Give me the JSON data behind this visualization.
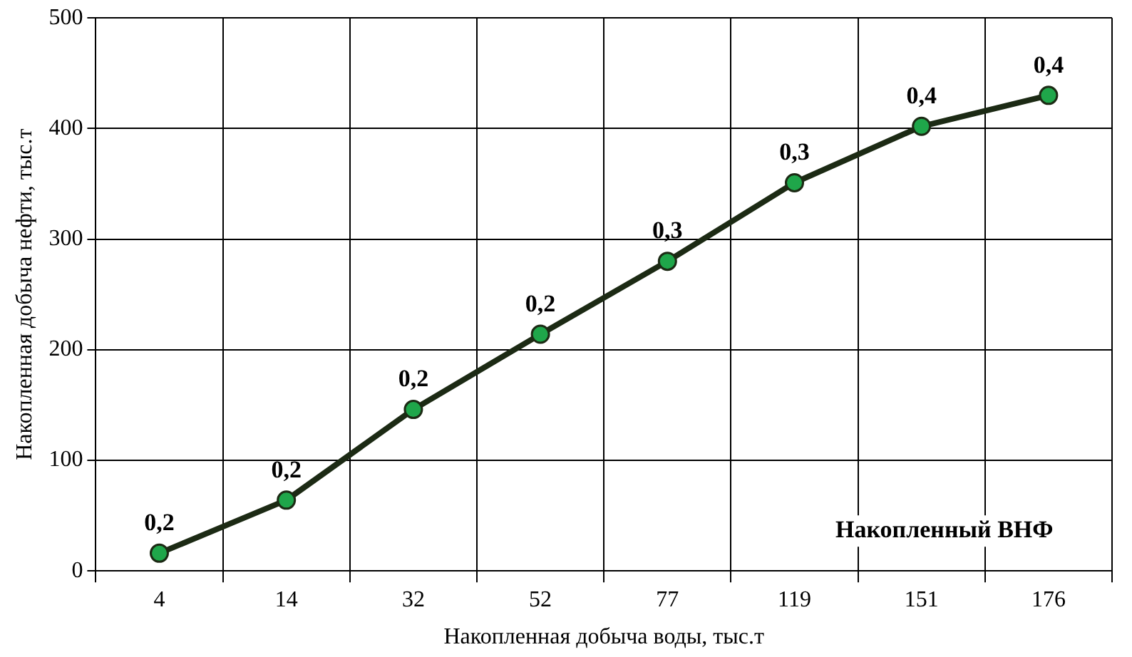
{
  "chart_data": {
    "type": "line",
    "xlabel": "Накопленная добыча воды, тыс.т",
    "ylabel": "Накопленная добыча нефти, тыс.т",
    "categories": [
      "4",
      "14",
      "32",
      "52",
      "77",
      "119",
      "151",
      "176"
    ],
    "series": [
      {
        "color": "#1c2a14",
        "values": [
          16,
          64,
          146,
          214,
          280,
          351,
          402,
          430
        ]
      }
    ],
    "ylim": [
      0,
      500
    ],
    "yticks": [
      0,
      100,
      200,
      300,
      400,
      500
    ],
    "grid": true,
    "legend": false,
    "marker": "circle",
    "line_style": "solid",
    "annotations": [
      {
        "text": "0,2",
        "x": "4",
        "y": 16
      },
      {
        "text": "0,2",
        "x": "14",
        "y": 64
      },
      {
        "text": "0,2",
        "x": "32",
        "y": 146
      },
      {
        "text": "0,2",
        "x": "52",
        "y": 214
      },
      {
        "text": "0,3",
        "x": "77",
        "y": 280
      },
      {
        "text": "0,3",
        "x": "119",
        "y": 351
      },
      {
        "text": "0,4",
        "x": "151",
        "y": 402
      },
      {
        "text": "0,4",
        "x": "176",
        "y": 430
      },
      "Накопленный ВНФ"
    ]
  }
}
